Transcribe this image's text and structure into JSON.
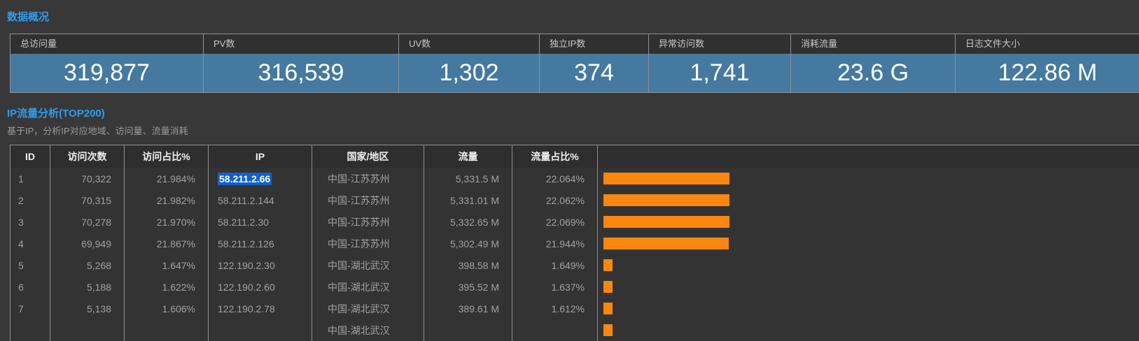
{
  "colors": {
    "page_bg": "#383838",
    "section_title": "#2F9CEC",
    "card_value_bg": "#45799F",
    "bar": "#FB870F",
    "ip_selection": "#1261CC"
  },
  "overview": {
    "section_title": "数据概况",
    "cards": [
      {
        "label": "总访问量",
        "value": "319,877"
      },
      {
        "label": "PV数",
        "value": "316,539"
      },
      {
        "label": "UV数",
        "value": "1,302"
      },
      {
        "label": "独立IP数",
        "value": "374"
      },
      {
        "label": "异常访问数",
        "value": "1,741"
      },
      {
        "label": "消耗流量",
        "value": "23.6 G"
      },
      {
        "label": "日志文件大小",
        "value": "122.86 M"
      }
    ]
  },
  "ip_analysis": {
    "section_title": "IP流量分析(TOP200)",
    "subtitle": "基于IP，分析IP对应地域、访问量、流量消耗",
    "columns": [
      "ID",
      "访问次数",
      "访问占比%",
      "IP",
      "国家/地区",
      "流量",
      "流量占比%",
      ""
    ],
    "rows": [
      {
        "id": "1",
        "visits": "70,322",
        "visits_pct": "21.984%",
        "ip": "58.211.2.66",
        "ip_selected": true,
        "region": "中国-江苏苏州",
        "flow": "5,331.5 M",
        "flow_pct": "22.064%",
        "bar_pct": 22.064
      },
      {
        "id": "2",
        "visits": "70,315",
        "visits_pct": "21.982%",
        "ip": "58.211.2.144",
        "ip_selected": false,
        "region": "中国-江苏苏州",
        "flow": "5,331.01 M",
        "flow_pct": "22.062%",
        "bar_pct": 22.062
      },
      {
        "id": "3",
        "visits": "70,278",
        "visits_pct": "21.970%",
        "ip": "58.211.2.30",
        "ip_selected": false,
        "region": "中国-江苏苏州",
        "flow": "5,332.65 M",
        "flow_pct": "22.069%",
        "bar_pct": 22.069
      },
      {
        "id": "4",
        "visits": "69,949",
        "visits_pct": "21.867%",
        "ip": "58.211.2.126",
        "ip_selected": false,
        "region": "中国-江苏苏州",
        "flow": "5,302.49 M",
        "flow_pct": "21.944%",
        "bar_pct": 21.944
      },
      {
        "id": "5",
        "visits": "5,268",
        "visits_pct": "1.647%",
        "ip": "122.190.2.30",
        "ip_selected": false,
        "region": "中国-湖北武汉",
        "flow": "398.58 M",
        "flow_pct": "1.649%",
        "bar_pct": 1.649
      },
      {
        "id": "6",
        "visits": "5,188",
        "visits_pct": "1.622%",
        "ip": "122.190.2.60",
        "ip_selected": false,
        "region": "中国-湖北武汉",
        "flow": "395.52 M",
        "flow_pct": "1.637%",
        "bar_pct": 1.637
      },
      {
        "id": "7",
        "visits": "5,138",
        "visits_pct": "1.606%",
        "ip": "122.190.2.78",
        "ip_selected": false,
        "region": "中国-湖北武汉",
        "flow": "389.61 M",
        "flow_pct": "1.612%",
        "bar_pct": 1.612
      },
      {
        "id": "",
        "visits": "",
        "visits_pct": "",
        "ip": "",
        "ip_selected": false,
        "region": "中国-湖北武汉",
        "flow": "",
        "flow_pct": "",
        "bar_pct": 1.6
      }
    ]
  }
}
